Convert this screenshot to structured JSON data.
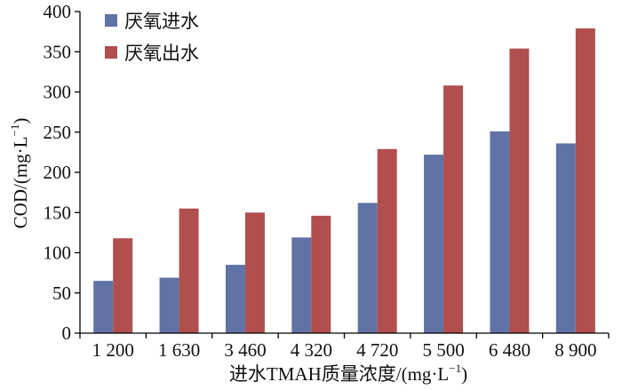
{
  "chart_data": {
    "type": "bar",
    "categories": [
      "1 200",
      "1 630",
      "3 460",
      "4 320",
      "4 720",
      "5 500",
      "6 480",
      "8 900"
    ],
    "series": [
      {
        "name": "厌氧进水",
        "color": "#6073a6",
        "values": [
          65,
          69,
          85,
          119,
          162,
          222,
          251,
          236
        ]
      },
      {
        "name": "厌氧出水",
        "color": "#b04f4e",
        "values": [
          118,
          155,
          150,
          146,
          229,
          308,
          354,
          379
        ]
      }
    ],
    "xlabel_main": "进水TMAH质量浓度/(mg·L",
    "xlabel_sup": "−1",
    "xlabel_close": ")",
    "ylabel_main": "COD/(mg·L",
    "ylabel_sup": "−1",
    "ylabel_close": ")",
    "ylim": [
      0,
      400
    ],
    "yticks": [
      0,
      50,
      100,
      150,
      200,
      250,
      300,
      350,
      400
    ],
    "grid": false,
    "legend_position": "top-left"
  }
}
